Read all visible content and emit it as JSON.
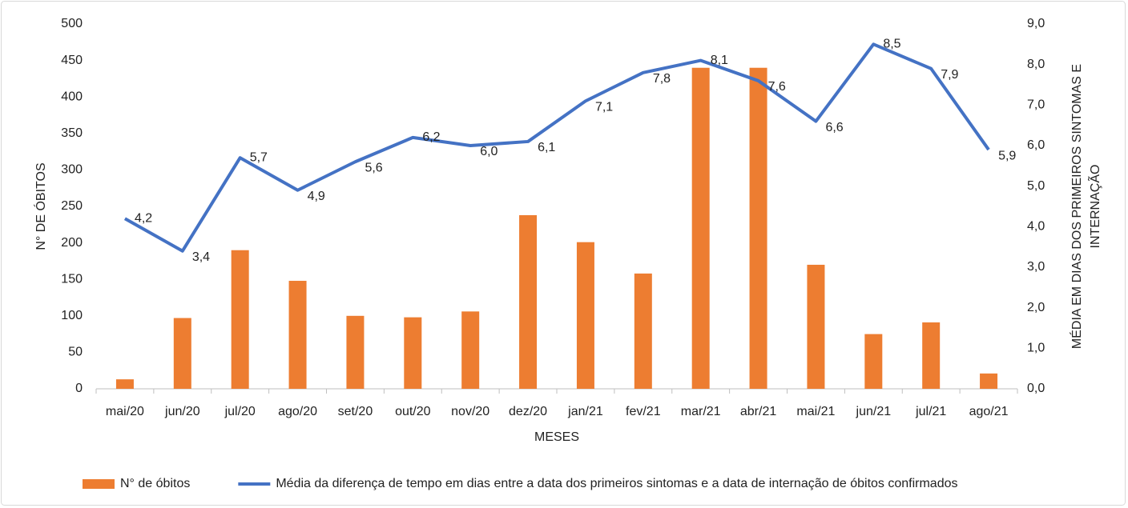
{
  "chart_data": {
    "type": "combo",
    "categories": [
      "mai/20",
      "jun/20",
      "jul/20",
      "ago/20",
      "set/20",
      "out/20",
      "nov/20",
      "dez/20",
      "jan/21",
      "fev/21",
      "mar/21",
      "abr/21",
      "mai/21",
      "jun/21",
      "jul/21",
      "ago/21"
    ],
    "series": [
      {
        "name": "N° de óbitos",
        "type": "bar",
        "color": "#ed7d31",
        "values": [
          13,
          97,
          190,
          148,
          100,
          98,
          106,
          238,
          201,
          158,
          440,
          440,
          170,
          75,
          91,
          21
        ]
      },
      {
        "name": "Média da diferença de tempo em dias entre a data dos primeiros sintomas e a data de internação de óbitos confirmados",
        "type": "line",
        "axis": "y2",
        "color": "#4472c4",
        "values": [
          4.2,
          3.4,
          5.7,
          4.9,
          5.6,
          6.2,
          6.0,
          6.1,
          7.1,
          7.8,
          8.1,
          7.6,
          6.6,
          8.5,
          7.9,
          5.9
        ],
        "value_labels": [
          "4,2",
          "3,4",
          "5,7",
          "4,9",
          "5,6",
          "6,2",
          "6,0",
          "6,1",
          "7,1",
          "7,8",
          "8,1",
          "7,6",
          "6,6",
          "8,5",
          "7,9",
          "5,9"
        ]
      }
    ],
    "x_label": "MESES",
    "y_label": "N° DE ÓBITOS",
    "y2_label": [
      "MÉDIA EM DIAS DOS PRIMEIROS SINTOMAS E",
      "INTERNAÇÃO"
    ],
    "ylim": [
      0,
      500
    ],
    "yticks": [
      0,
      50,
      100,
      150,
      200,
      250,
      300,
      350,
      400,
      450,
      500
    ],
    "y2lim": [
      0,
      9
    ],
    "y2ticks": [
      {
        "value": 0,
        "label": "0,0"
      },
      {
        "value": 1,
        "label": "1,0"
      },
      {
        "value": 2,
        "label": "2,0"
      },
      {
        "value": 3,
        "label": "3,0"
      },
      {
        "value": 4,
        "label": "4,0"
      },
      {
        "value": 5,
        "label": "5,0"
      },
      {
        "value": 6,
        "label": "6,0"
      },
      {
        "value": 7,
        "label": "7,0"
      },
      {
        "value": 8,
        "label": "8,0"
      },
      {
        "value": 9,
        "label": "9,0"
      }
    ],
    "grid": false,
    "legend": "bottom"
  }
}
